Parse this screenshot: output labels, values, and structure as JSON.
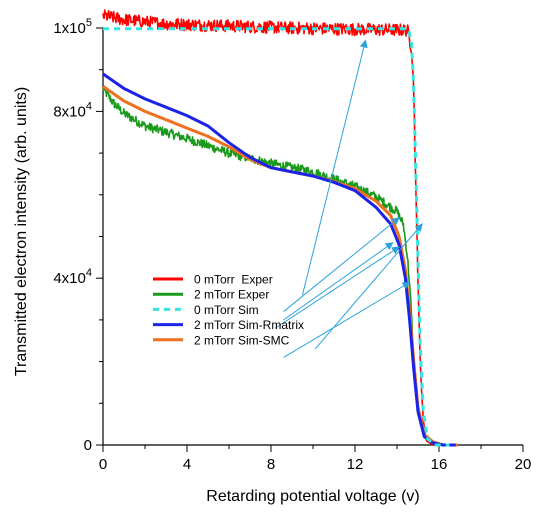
{
  "chart_data": {
    "type": "line",
    "xlabel": "Retarding potential voltage (v)",
    "ylabel": "Transmitted electron intensity (arb. units)",
    "xlim": [
      0,
      20
    ],
    "ylim": [
      0,
      100000
    ],
    "x_ticks": [
      0,
      4,
      8,
      12,
      16,
      20
    ],
    "x_tick_labels": [
      "0",
      "4",
      "8",
      "12",
      "16",
      "20"
    ],
    "y_ticks": [
      {
        "value": 0,
        "base": "0",
        "exp": ""
      },
      {
        "value": 40000,
        "base": "4x10",
        "exp": "4"
      },
      {
        "value": 80000,
        "base": "8x10",
        "exp": "4"
      },
      {
        "value": 100000,
        "base": "1x10",
        "exp": "5"
      }
    ],
    "grid": false,
    "legend_position": "center-left",
    "series": [
      {
        "name": "0 mTorr  Exper",
        "color": "#ff0000",
        "style": "noisy",
        "noise": 1500,
        "points": [
          [
            0,
            103000
          ],
          [
            1,
            102000
          ],
          [
            3,
            101000
          ],
          [
            6,
            100500
          ],
          [
            9,
            100000
          ],
          [
            12,
            99700
          ],
          [
            14.5,
            99500
          ],
          [
            14.7,
            95000
          ],
          [
            14.8,
            85000
          ],
          [
            14.9,
            60000
          ],
          [
            15.0,
            40000
          ],
          [
            15.1,
            20000
          ],
          [
            15.25,
            6000
          ],
          [
            15.4,
            1000
          ],
          [
            15.7,
            0
          ],
          [
            16,
            0
          ]
        ]
      },
      {
        "name": "2 mTorr Exper",
        "color": "#1a9a1a",
        "style": "noisy",
        "noise": 1100,
        "points": [
          [
            0,
            85500
          ],
          [
            0.5,
            82000
          ],
          [
            1,
            79500
          ],
          [
            2,
            76500
          ],
          [
            4,
            73500
          ],
          [
            6,
            70000
          ],
          [
            8,
            67500
          ],
          [
            10,
            65500
          ],
          [
            12,
            62000
          ],
          [
            13,
            59500
          ],
          [
            14,
            56000
          ],
          [
            14.3,
            53000
          ],
          [
            14.5,
            45000
          ],
          [
            14.65,
            35000
          ],
          [
            14.8,
            20000
          ],
          [
            15.0,
            8000
          ],
          [
            15.3,
            2000
          ],
          [
            15.7,
            0
          ],
          [
            16.5,
            0
          ]
        ]
      },
      {
        "name": "0 mTorr Sim",
        "color": "#33e6e6",
        "style": "dashed",
        "points": [
          [
            0,
            99800
          ],
          [
            5,
            99800
          ],
          [
            10,
            99800
          ],
          [
            14.55,
            99800
          ],
          [
            14.7,
            96000
          ],
          [
            14.8,
            85000
          ],
          [
            14.9,
            65000
          ],
          [
            15.0,
            45000
          ],
          [
            15.1,
            25000
          ],
          [
            15.25,
            8000
          ],
          [
            15.45,
            1500
          ],
          [
            15.8,
            0
          ],
          [
            16.5,
            0
          ]
        ]
      },
      {
        "name": "2 mTorr Sim-Rmatrix",
        "color": "#1a23e6",
        "style": "solid",
        "points": [
          [
            0,
            89000
          ],
          [
            1,
            85500
          ],
          [
            2,
            83000
          ],
          [
            3,
            81000
          ],
          [
            4,
            79000
          ],
          [
            5,
            76500
          ],
          [
            6,
            72500
          ],
          [
            7,
            69000
          ],
          [
            8,
            66500
          ],
          [
            9,
            65500
          ],
          [
            10,
            64500
          ],
          [
            11,
            63000
          ],
          [
            12,
            61000
          ],
          [
            13,
            57000
          ],
          [
            13.7,
            53000
          ],
          [
            14.1,
            48000
          ],
          [
            14.4,
            40000
          ],
          [
            14.6,
            30000
          ],
          [
            14.8,
            18000
          ],
          [
            15.0,
            8000
          ],
          [
            15.3,
            2000
          ],
          [
            15.7,
            500
          ],
          [
            16.2,
            0
          ],
          [
            16.8,
            0
          ]
        ]
      },
      {
        "name": "2 mTorr Sim-SMC",
        "color": "#f07020",
        "style": "solid",
        "points": [
          [
            0,
            86000
          ],
          [
            1,
            82500
          ],
          [
            2,
            80000
          ],
          [
            3,
            78000
          ],
          [
            4,
            76000
          ],
          [
            5,
            74000
          ],
          [
            6,
            71500
          ],
          [
            7,
            68500
          ],
          [
            8,
            66500
          ],
          [
            9,
            65500
          ],
          [
            10,
            64500
          ],
          [
            11,
            63200
          ],
          [
            12,
            61500
          ],
          [
            13,
            58500
          ],
          [
            13.7,
            55000
          ],
          [
            14.1,
            50000
          ],
          [
            14.4,
            42000
          ],
          [
            14.6,
            32000
          ],
          [
            14.8,
            20000
          ],
          [
            15.0,
            9000
          ],
          [
            15.3,
            2500
          ],
          [
            15.7,
            800
          ],
          [
            16.2,
            0
          ],
          [
            16.9,
            0
          ]
        ]
      }
    ],
    "annotations": [
      {
        "type": "arrow",
        "from": [
          9.5,
          36000
        ],
        "to": [
          12.5,
          97000
        ]
      },
      {
        "type": "arrow",
        "from": [
          8.6,
          32000
        ],
        "to": [
          14.1,
          54500
        ]
      },
      {
        "type": "arrow",
        "from": [
          8.6,
          30000
        ],
        "to": [
          13.8,
          48500
        ]
      },
      {
        "type": "arrow",
        "from": [
          8.2,
          28000
        ],
        "to": [
          14.1,
          47500
        ]
      },
      {
        "type": "arrow",
        "from": [
          8.6,
          21000
        ],
        "to": [
          14.6,
          39000
        ]
      },
      {
        "type": "arrow",
        "from": [
          10.1,
          23000
        ],
        "to": [
          15.2,
          53000
        ]
      }
    ],
    "arrow_color": "#2aa3dd"
  }
}
